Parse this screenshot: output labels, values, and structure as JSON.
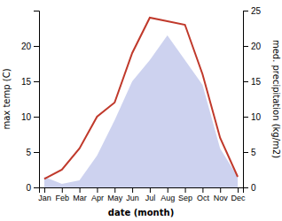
{
  "chart_data": {
    "type": "line",
    "xlabel": "date (month)",
    "ylabel": "max temp (C)",
    "y2label": "med. precipitation (kg/m2)",
    "categories": [
      "Jan",
      "Feb",
      "Mar",
      "Apr",
      "May",
      "Jun",
      "Jul",
      "Aug",
      "Sep",
      "Oct",
      "Nov",
      "Dec"
    ],
    "series": [
      {
        "type": "area",
        "axis": "y2",
        "color": "#b8bfe8",
        "values": [
          1.5,
          0.5,
          1.0,
          4.5,
          9.5,
          15.0,
          18.0,
          21.5,
          18.0,
          14.5,
          5.5,
          1.5
        ]
      },
      {
        "type": "line",
        "color": "#c0392b",
        "values": [
          1.2,
          2.5,
          5.5,
          10.0,
          12.0,
          19.0,
          24.0,
          23.5,
          23.0,
          16.0,
          7.0,
          1.5
        ]
      }
    ],
    "ylim": [
      0,
      25
    ],
    "yticks": [
      0,
      5,
      10,
      15,
      20
    ],
    "y2lim": [
      0,
      25
    ],
    "y2ticks": [
      0,
      5,
      10,
      15,
      20,
      25
    ]
  }
}
